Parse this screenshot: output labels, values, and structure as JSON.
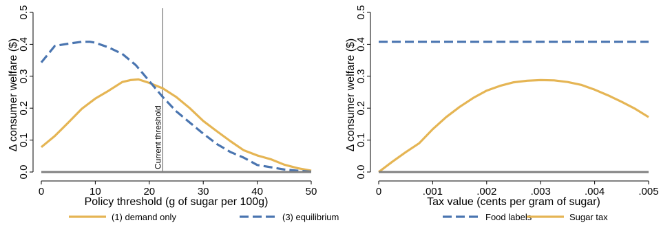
{
  "colors": {
    "gold": "#E5B554",
    "blue": "#4A75B0",
    "zero": "#808080",
    "axis": "#000000",
    "threshold": "#555555"
  },
  "chart_data": [
    {
      "type": "line",
      "xlabel": "Policy threshold (g of sugar per 100g)",
      "ylabel": "Δ consumer welfare ($)",
      "xlim": [
        0,
        50
      ],
      "ylim": [
        0,
        0.5
      ],
      "xticks": [
        0,
        10,
        20,
        30,
        40,
        50
      ],
      "xtick_labels": [
        "0",
        "10",
        "20",
        "30",
        "40",
        "50"
      ],
      "yticks": [
        0,
        0.1,
        0.2,
        0.3,
        0.4,
        0.5
      ],
      "ytick_labels": [
        "0.0",
        "0.1",
        "0.2",
        "0.3",
        "0.4",
        "0.5"
      ],
      "grid": false,
      "legend_position": "bottom",
      "series": [
        {
          "name": "(1) demand only",
          "color": "gold",
          "style": "solid",
          "x": [
            0,
            2.5,
            5,
            7.5,
            10,
            12.5,
            15,
            16.5,
            18,
            20,
            22.5,
            25,
            27.5,
            30,
            32.5,
            35,
            37.5,
            40,
            42.5,
            45,
            47.5,
            50
          ],
          "y": [
            0.078,
            0.113,
            0.155,
            0.198,
            0.23,
            0.255,
            0.282,
            0.288,
            0.29,
            0.279,
            0.262,
            0.235,
            0.2,
            0.16,
            0.128,
            0.097,
            0.068,
            0.052,
            0.04,
            0.023,
            0.012,
            0.004
          ]
        },
        {
          "name": "(3) equilibrium",
          "color": "blue",
          "style": "dashed",
          "x": [
            0,
            2.5,
            5,
            7.5,
            9,
            10,
            12.5,
            15,
            17.5,
            20,
            22.5,
            25,
            27.5,
            30,
            32.5,
            35,
            37.5,
            40,
            42.5,
            45,
            47.5,
            50
          ],
          "y": [
            0.343,
            0.395,
            0.402,
            0.408,
            0.408,
            0.405,
            0.39,
            0.37,
            0.335,
            0.285,
            0.235,
            0.19,
            0.155,
            0.12,
            0.088,
            0.063,
            0.045,
            0.022,
            0.015,
            0.008,
            0.004,
            0.001
          ]
        },
        {
          "name": "",
          "color": "zero",
          "style": "solid",
          "x": [
            0,
            50
          ],
          "y": [
            0,
            0
          ]
        }
      ],
      "annotations": [
        {
          "type": "vline",
          "x": 22.5,
          "text": "Current threshold"
        }
      ]
    },
    {
      "type": "line",
      "xlabel": "Tax value (cents per gram of sugar)",
      "ylabel": "Δ consumer welfare ($)",
      "xlim": [
        0,
        0.005
      ],
      "ylim": [
        0,
        0.5
      ],
      "xticks": [
        0,
        0.001,
        0.002,
        0.003,
        0.004,
        0.005
      ],
      "xtick_labels": [
        "0",
        ".001",
        ".002",
        ".003",
        ".004",
        ".005"
      ],
      "yticks": [
        0,
        0.1,
        0.2,
        0.3,
        0.4,
        0.5
      ],
      "ytick_labels": [
        "0.0",
        "0.1",
        "0.2",
        "0.3",
        "0.4",
        "0.5"
      ],
      "grid": false,
      "legend_position": "bottom",
      "series": [
        {
          "name": "Food labels",
          "color": "blue",
          "style": "dashed",
          "x": [
            0,
            0.005
          ],
          "y": [
            0.408,
            0.408
          ]
        },
        {
          "name": "Sugar tax",
          "color": "gold",
          "style": "solid",
          "x": [
            0,
            0.00025,
            0.0005,
            0.00075,
            0.001,
            0.00125,
            0.0015,
            0.00175,
            0.002,
            0.00225,
            0.0025,
            0.00275,
            0.003,
            0.00325,
            0.0035,
            0.00375,
            0.004,
            0.00425,
            0.0045,
            0.00475,
            0.005
          ],
          "y": [
            0.0,
            0.032,
            0.062,
            0.09,
            0.134,
            0.172,
            0.204,
            0.232,
            0.255,
            0.27,
            0.281,
            0.286,
            0.288,
            0.287,
            0.282,
            0.273,
            0.258,
            0.24,
            0.22,
            0.198,
            0.172
          ]
        },
        {
          "name": "",
          "color": "zero",
          "style": "solid",
          "x": [
            0,
            0.005
          ],
          "y": [
            0,
            0
          ]
        }
      ]
    }
  ]
}
